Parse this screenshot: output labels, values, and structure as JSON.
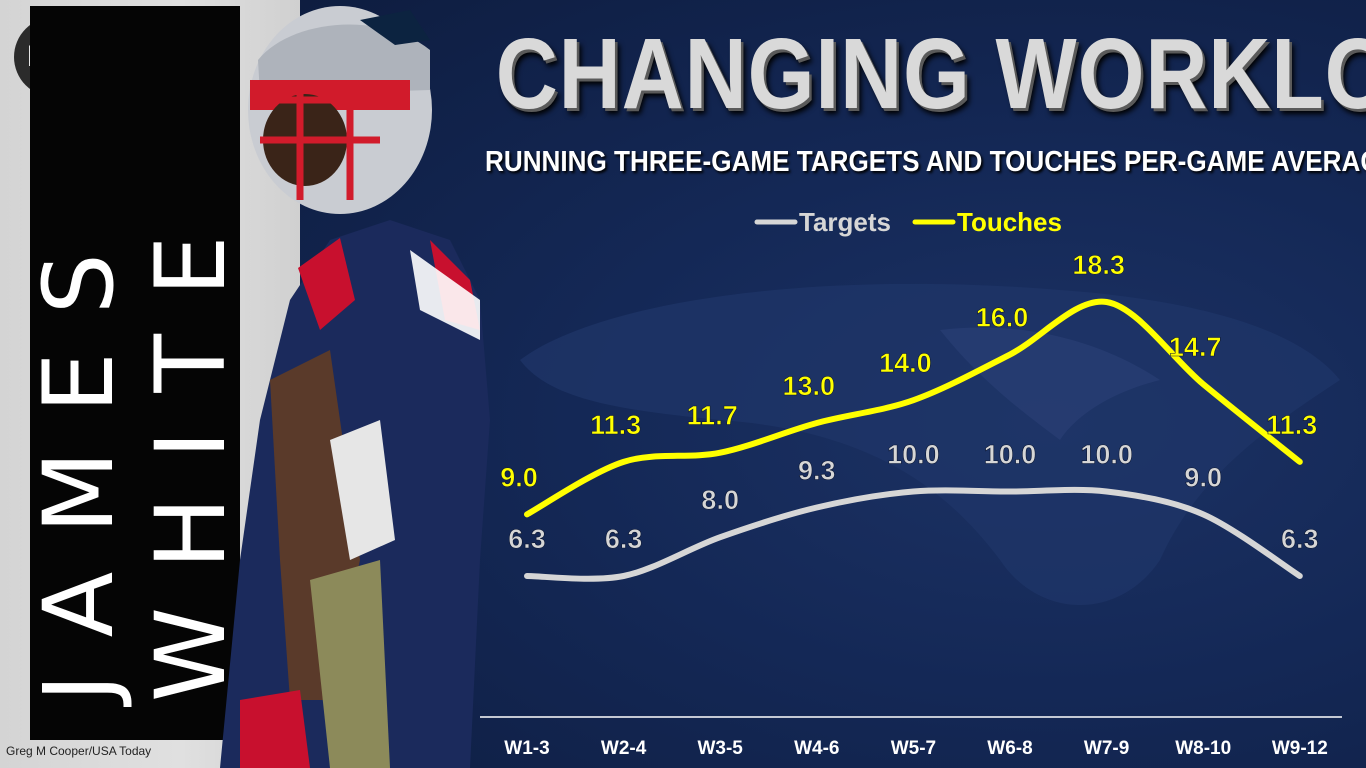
{
  "brand": {
    "logo_text": "PFF"
  },
  "player_name": "JAMES WHITE",
  "title": "CHANGING WORKLOAD",
  "subtitle": "RUNNING THREE-GAME TARGETS AND TOUCHES PER-GAME AVERAGE",
  "photo_credit": "Greg M Cooper/USA Today",
  "colors": {
    "targets": "#d6d6d6",
    "touches": "#ffff00",
    "background": "#0f1e3e"
  },
  "chart_data": {
    "type": "line",
    "title": "CHANGING WORKLOAD",
    "subtitle": "RUNNING THREE-GAME TARGETS AND TOUCHES PER-GAME AVERAGE",
    "categories": [
      "W1-3",
      "W2-4",
      "W3-5",
      "W4-6",
      "W5-7",
      "W6-8",
      "W7-9",
      "W8-10",
      "W9-12"
    ],
    "series": [
      {
        "name": "Targets",
        "color": "#d6d6d6",
        "values": [
          6.3,
          6.3,
          8.0,
          9.3,
          10.0,
          10.0,
          10.0,
          9.0,
          6.3
        ]
      },
      {
        "name": "Touches",
        "color": "#ffff00",
        "values": [
          9.0,
          11.3,
          11.7,
          13.0,
          14.0,
          16.0,
          18.3,
          14.7,
          11.3
        ]
      }
    ],
    "ylim": [
      4,
      19
    ],
    "grid": false,
    "legend": "top-center",
    "data_labels": true
  }
}
